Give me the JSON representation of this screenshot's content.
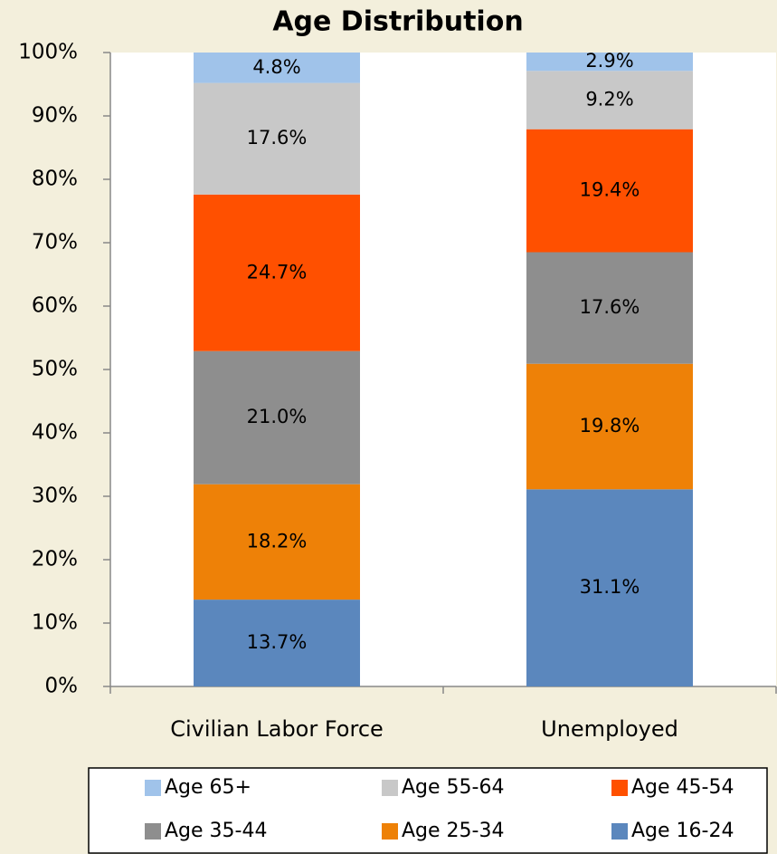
{
  "chart_data": {
    "type": "stacked_bar",
    "title": "Age Distribution",
    "categories": [
      "Civilian Labor Force",
      "Unemployed"
    ],
    "series": [
      {
        "name": "Age 16-24",
        "color": "#5b87bd",
        "values": [
          13.7,
          31.1
        ],
        "value_labels": [
          "13.7%",
          "31.1%"
        ]
      },
      {
        "name": "Age 25-34",
        "color": "#ee8107",
        "values": [
          18.2,
          19.8
        ],
        "value_labels": [
          "18.2%",
          "19.8%"
        ]
      },
      {
        "name": "Age 35-44",
        "color": "#8e8e8e",
        "values": [
          21.0,
          17.6
        ],
        "value_labels": [
          "21.0%",
          "17.6%"
        ]
      },
      {
        "name": "Age 45-54",
        "color": "#ff5000",
        "values": [
          24.7,
          19.4
        ],
        "value_labels": [
          "24.7%",
          "19.4%"
        ]
      },
      {
        "name": "Age 55-64",
        "color": "#c8c8c8",
        "values": [
          17.6,
          9.2
        ],
        "value_labels": [
          "17.6%",
          "9.2%"
        ]
      },
      {
        "name": "Age 65+",
        "color": "#a0c3ea",
        "values": [
          4.8,
          2.9
        ],
        "value_labels": [
          "4.8%",
          "2.9%"
        ]
      }
    ],
    "ylim": [
      0,
      100
    ],
    "yticks": [
      {
        "value": 0,
        "label": "0%"
      },
      {
        "value": 10,
        "label": "10%"
      },
      {
        "value": 20,
        "label": "20%"
      },
      {
        "value": 30,
        "label": "30%"
      },
      {
        "value": 40,
        "label": "40%"
      },
      {
        "value": 50,
        "label": "50%"
      },
      {
        "value": 60,
        "label": "60%"
      },
      {
        "value": 70,
        "label": "70%"
      },
      {
        "value": 80,
        "label": "80%"
      },
      {
        "value": 90,
        "label": "90%"
      },
      {
        "value": 100,
        "label": "100%"
      }
    ],
    "legend": "bottom"
  }
}
